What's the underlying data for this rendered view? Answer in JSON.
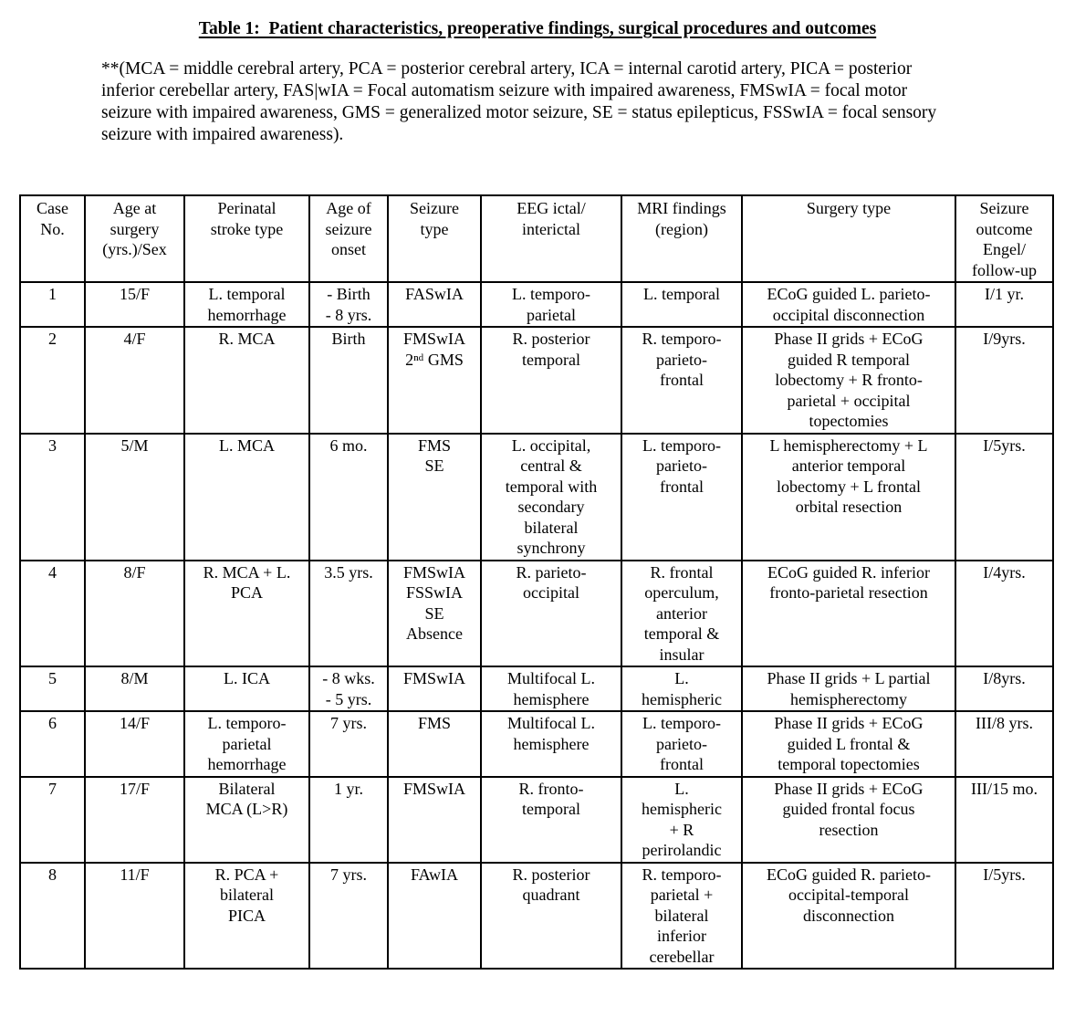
{
  "doc": {
    "title": "Table 1:  Patient characteristics, preoperative findings, surgical procedures and outcomes",
    "note": "**(MCA = middle cerebral artery, PCA = posterior cerebral artery, ICA = internal carotid artery, PICA = posterior\ninferior cerebellar artery, FAS|wIA = Focal automatism seizure with impaired awareness, FMSwIA = focal motor\nseizure with impaired awareness, GMS = generalized motor seizure, SE = status epilepticus, FSSwIA = focal sensory\nseizure with impaired awareness)."
  },
  "table": {
    "columns": [
      "Case\nNo.",
      "Age at\nsurgery\n(yrs.)/Sex",
      "Perinatal\nstroke type",
      "Age of\nseizure\nonset",
      "Seizure\ntype",
      "EEG ictal/\ninterictal",
      "MRI findings\n(region)",
      "Surgery type",
      "Seizure\noutcome\nEngel/\nfollow-up"
    ],
    "rows": [
      [
        "1",
        "15/F",
        "L. temporal\nhemorrhage",
        "- Birth\n- 8 yrs.",
        "FASwIA",
        "L. temporo-\nparietal",
        "L. temporal",
        "ECoG guided L. parieto-\noccipital disconnection",
        "I/1 yr."
      ],
      [
        "2",
        "4/F",
        "R. MCA",
        "Birth",
        "FMSwIA\n2ⁿᵈ GMS",
        "R. posterior\ntemporal",
        "R. temporo-\nparieto-\nfrontal",
        "Phase II grids + ECoG\nguided R temporal\nlobectomy + R fronto-\nparietal + occipital\ntopectomies",
        "I/9yrs."
      ],
      [
        "3",
        "5/M",
        "L. MCA",
        "6 mo.",
        "FMS\nSE",
        "L. occipital,\ncentral &\ntemporal with\nsecondary\nbilateral\nsynchrony",
        "L. temporo-\nparieto-\nfrontal",
        "L hemispherectomy + L\nanterior temporal\nlobectomy + L frontal\norbital resection",
        "I/5yrs."
      ],
      [
        "4",
        "8/F",
        "R. MCA + L.\nPCA",
        "3.5 yrs.",
        "FMSwIA\nFSSwIA\nSE\nAbsence",
        "R. parieto-\noccipital",
        "R. frontal\noperculum,\nanterior\ntemporal &\ninsular",
        "ECoG guided R. inferior\nfronto-parietal resection",
        "I/4yrs."
      ],
      [
        "5",
        "8/M",
        "L. ICA",
        "- 8 wks.\n- 5 yrs.",
        "FMSwIA",
        "Multifocal L.\nhemisphere",
        "L.\nhemispheric",
        "Phase II grids + L partial\nhemispherectomy",
        "I/8yrs."
      ],
      [
        "6",
        "14/F",
        "L. temporo-\nparietal\nhemorrhage",
        "7 yrs.",
        "FMS",
        "Multifocal L.\nhemisphere",
        "L. temporo-\nparieto-\nfrontal",
        "Phase II grids + ECoG\nguided L frontal &\ntemporal topectomies",
        "III/8 yrs."
      ],
      [
        "7",
        "17/F",
        "Bilateral\nMCA (L>R)",
        "1 yr.",
        "FMSwIA",
        "R. fronto-\ntemporal",
        "L.\nhemispheric\n+ R\nperirolandic",
        "Phase II grids + ECoG\nguided frontal focus\nresection",
        "III/15 mo."
      ],
      [
        "8",
        "11/F",
        "R. PCA +\nbilateral\nPICA",
        "7 yrs.",
        "FAwIA",
        "R. posterior\nquadrant",
        "R. temporo-\nparietal +\nbilateral\ninferior\ncerebellar",
        "ECoG guided R. parieto-\noccipital-temporal\ndisconnection",
        "I/5yrs."
      ]
    ]
  }
}
